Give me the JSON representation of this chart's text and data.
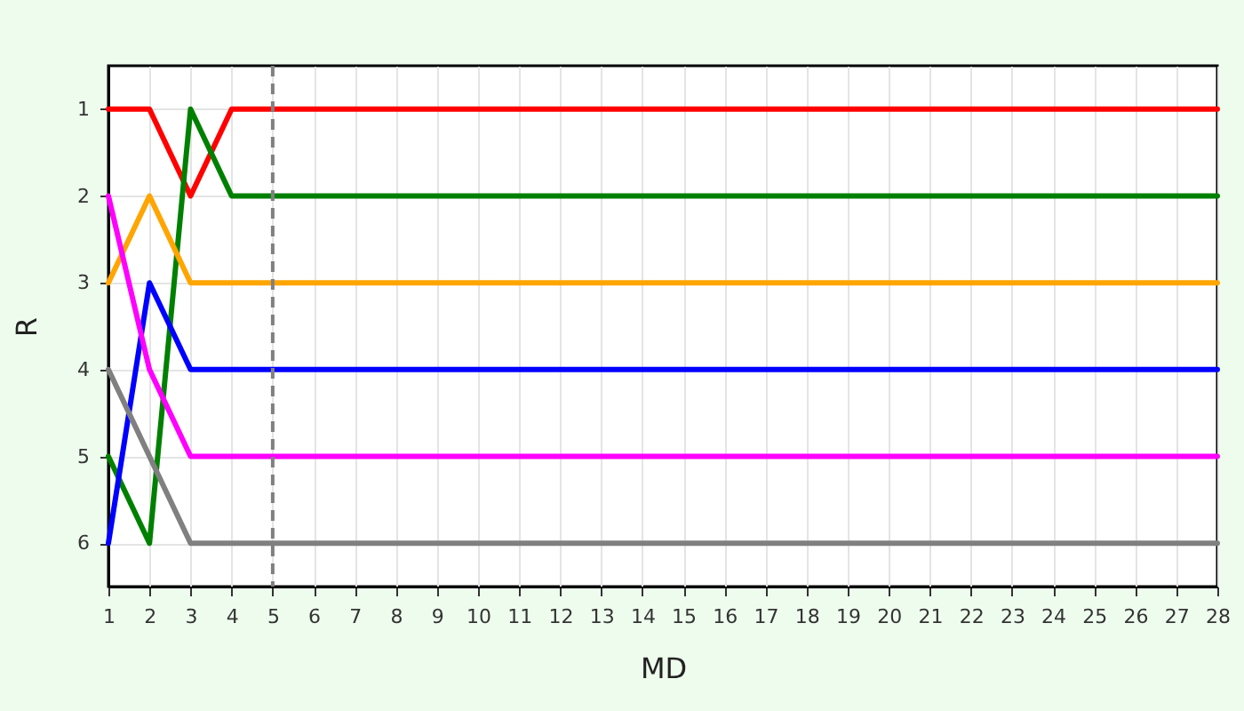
{
  "chart_data": {
    "type": "line",
    "xlabel": "MD",
    "ylabel": "R",
    "x": [
      1,
      2,
      3,
      4,
      5,
      6,
      7,
      8,
      9,
      10,
      11,
      12,
      13,
      14,
      15,
      16,
      17,
      18,
      19,
      20,
      21,
      22,
      23,
      24,
      25,
      26,
      27,
      28
    ],
    "series": [
      {
        "color": "#ff0000",
        "values": [
          1,
          1,
          2,
          1,
          1,
          1,
          1,
          1,
          1,
          1,
          1,
          1,
          1,
          1,
          1,
          1,
          1,
          1,
          1,
          1,
          1,
          1,
          1,
          1,
          1,
          1,
          1,
          1
        ]
      },
      {
        "color": "#008000",
        "values": [
          5,
          6,
          1,
          2,
          2,
          2,
          2,
          2,
          2,
          2,
          2,
          2,
          2,
          2,
          2,
          2,
          2,
          2,
          2,
          2,
          2,
          2,
          2,
          2,
          2,
          2,
          2,
          2
        ]
      },
      {
        "color": "#ffa500",
        "values": [
          3,
          2,
          3,
          3,
          3,
          3,
          3,
          3,
          3,
          3,
          3,
          3,
          3,
          3,
          3,
          3,
          3,
          3,
          3,
          3,
          3,
          3,
          3,
          3,
          3,
          3,
          3,
          3
        ]
      },
      {
        "color": "#0000ff",
        "values": [
          6,
          3,
          4,
          4,
          4,
          4,
          4,
          4,
          4,
          4,
          4,
          4,
          4,
          4,
          4,
          4,
          4,
          4,
          4,
          4,
          4,
          4,
          4,
          4,
          4,
          4,
          4,
          4
        ]
      },
      {
        "color": "#ff00ff",
        "values": [
          2,
          4,
          5,
          5,
          5,
          5,
          5,
          5,
          5,
          5,
          5,
          5,
          5,
          5,
          5,
          5,
          5,
          5,
          5,
          5,
          5,
          5,
          5,
          5,
          5,
          5,
          5,
          5
        ]
      },
      {
        "color": "#808080",
        "values": [
          4,
          5,
          6,
          6,
          6,
          6,
          6,
          6,
          6,
          6,
          6,
          6,
          6,
          6,
          6,
          6,
          6,
          6,
          6,
          6,
          6,
          6,
          6,
          6,
          6,
          6,
          6,
          6
        ]
      }
    ],
    "xlim": [
      1,
      28
    ],
    "xticks": [
      1,
      2,
      3,
      4,
      5,
      6,
      7,
      8,
      9,
      10,
      11,
      12,
      13,
      14,
      15,
      16,
      17,
      18,
      19,
      20,
      21,
      22,
      23,
      24,
      25,
      26,
      27,
      28
    ],
    "ylim": [
      6.5,
      0.5
    ],
    "yticks": [
      1,
      2,
      3,
      4,
      5,
      6
    ],
    "grid": true,
    "legend": false,
    "marker": "none",
    "line_style": "solid",
    "ref_lines": [
      {
        "axis": "x",
        "value": 5,
        "color": "#808080",
        "line_style": "dashed"
      }
    ]
  }
}
